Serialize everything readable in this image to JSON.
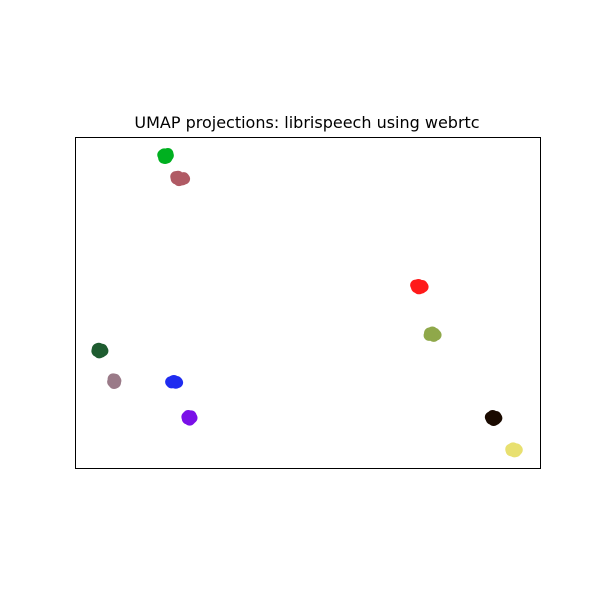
{
  "chart_data": {
    "type": "scatter",
    "title": "UMAP projections: librispeech using webrtc",
    "xlabel": "",
    "ylabel": "",
    "xlim": [
      0,
      100
    ],
    "ylim": [
      0,
      100
    ],
    "show_ticks": false,
    "grid": false,
    "legend": "none",
    "series": [
      {
        "color": "#00b020",
        "points": [
          [
            19.3,
            94.5
          ],
          [
            19.0,
            95.2
          ],
          [
            19.6,
            94.0
          ],
          [
            18.7,
            94.9
          ],
          [
            19.9,
            94.7
          ],
          [
            19.2,
            93.8
          ],
          [
            19.8,
            95.3
          ],
          [
            18.9,
            93.9
          ]
        ]
      },
      {
        "color": "#b05a64",
        "points": [
          [
            22.4,
            87.8
          ],
          [
            21.6,
            87.6
          ],
          [
            23.2,
            88.0
          ],
          [
            22.0,
            88.4
          ],
          [
            22.9,
            87.3
          ],
          [
            21.5,
            88.3
          ],
          [
            23.4,
            87.6
          ],
          [
            22.2,
            87.1
          ]
        ]
      },
      {
        "color": "#ff1a1a",
        "points": [
          [
            74.0,
            55.0
          ],
          [
            73.4,
            54.7
          ],
          [
            74.6,
            55.3
          ],
          [
            73.8,
            55.6
          ],
          [
            74.4,
            54.5
          ],
          [
            73.2,
            55.4
          ],
          [
            74.8,
            54.9
          ],
          [
            73.9,
            54.3
          ]
        ]
      },
      {
        "color": "#8fa84a",
        "points": [
          [
            76.7,
            40.5
          ],
          [
            76.1,
            40.2
          ],
          [
            77.3,
            40.8
          ],
          [
            76.5,
            41.0
          ],
          [
            77.6,
            40.3
          ],
          [
            76.2,
            40.9
          ],
          [
            77.1,
            39.9
          ],
          [
            76.8,
            41.2
          ]
        ]
      },
      {
        "color": "#1e5c30",
        "points": [
          [
            5.1,
            35.7
          ],
          [
            4.5,
            35.4
          ],
          [
            5.6,
            36.0
          ],
          [
            4.9,
            36.3
          ],
          [
            5.4,
            35.1
          ],
          [
            4.6,
            36.1
          ],
          [
            5.8,
            35.5
          ],
          [
            5.0,
            34.9
          ]
        ]
      },
      {
        "color": "#9a7a88",
        "points": [
          [
            8.2,
            26.3
          ],
          [
            8.0,
            27.0
          ],
          [
            8.5,
            25.8
          ],
          [
            8.1,
            26.7
          ],
          [
            8.4,
            26.9
          ],
          [
            7.9,
            26.1
          ],
          [
            8.6,
            26.4
          ],
          [
            8.2,
            25.6
          ]
        ]
      },
      {
        "color": "#1f2cf0",
        "points": [
          [
            21.2,
            26.0
          ],
          [
            20.6,
            25.8
          ],
          [
            21.7,
            26.2
          ],
          [
            20.9,
            26.4
          ],
          [
            21.5,
            25.7
          ],
          [
            20.4,
            26.1
          ],
          [
            21.9,
            25.9
          ],
          [
            21.1,
            26.5
          ]
        ]
      },
      {
        "color": "#7a10e8",
        "points": [
          [
            24.4,
            15.4
          ],
          [
            24.0,
            14.9
          ],
          [
            24.8,
            15.8
          ],
          [
            24.2,
            15.9
          ],
          [
            24.7,
            14.8
          ],
          [
            23.9,
            15.5
          ],
          [
            25.0,
            15.2
          ],
          [
            24.5,
            14.5
          ]
        ]
      },
      {
        "color": "#1a0a00",
        "points": [
          [
            90.0,
            15.2
          ],
          [
            89.5,
            14.8
          ],
          [
            90.5,
            15.6
          ],
          [
            89.8,
            15.9
          ],
          [
            90.4,
            14.7
          ],
          [
            89.3,
            15.4
          ],
          [
            90.7,
            15.1
          ],
          [
            90.0,
            14.4
          ]
        ]
      },
      {
        "color": "#e8e070",
        "points": [
          [
            94.4,
            5.5
          ],
          [
            93.8,
            5.2
          ],
          [
            94.9,
            5.8
          ],
          [
            94.2,
            6.1
          ],
          [
            94.8,
            5.0
          ],
          [
            93.7,
            5.7
          ],
          [
            95.1,
            5.5
          ],
          [
            94.5,
            4.9
          ]
        ]
      }
    ]
  }
}
